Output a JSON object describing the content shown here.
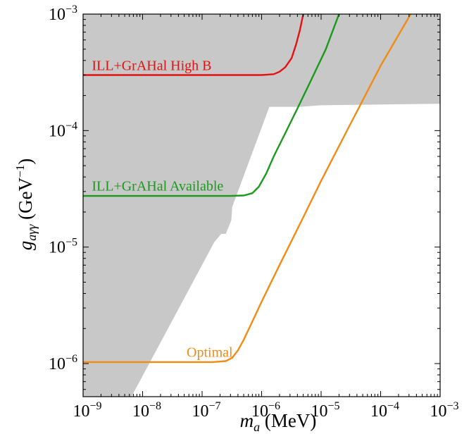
{
  "chart_data": {
    "type": "line",
    "x_scale": "log",
    "y_scale": "log",
    "xlim": [
      1e-09,
      0.001
    ],
    "ylim": [
      5.2e-07,
      0.001
    ],
    "xlabel": {
      "var": "m",
      "sub": "a",
      "unit": " (MeV)"
    },
    "ylabel": {
      "var": "g",
      "sub": "aγγ",
      "unit_pre": " (GeV",
      "unit_sup": "−1",
      "unit_post": ")"
    },
    "x_ticks": [
      {
        "value": 1e-09,
        "base": "10",
        "exp": "−9"
      },
      {
        "value": 1e-08,
        "base": "10",
        "exp": "−8"
      },
      {
        "value": 1e-07,
        "base": "10",
        "exp": "−7"
      },
      {
        "value": 1e-06,
        "base": "10",
        "exp": "−6"
      },
      {
        "value": 1e-05,
        "base": "10",
        "exp": "−5"
      },
      {
        "value": 0.0001,
        "base": "10",
        "exp": "−4"
      },
      {
        "value": 0.001,
        "base": "10",
        "exp": "−3"
      }
    ],
    "y_ticks": [
      {
        "value": 1e-06,
        "base": "10",
        "exp": "−6"
      },
      {
        "value": 1e-05,
        "base": "10",
        "exp": "−5"
      },
      {
        "value": 0.0001,
        "base": "10",
        "exp": "−4"
      },
      {
        "value": 0.001,
        "base": "10",
        "exp": "−3"
      }
    ],
    "excluded_region": {
      "color": "#c8c8c8",
      "boundary": [
        [
          1e-09,
          0.001
        ],
        [
          0.001,
          0.001
        ],
        [
          0.001,
          0.00017
        ],
        [
          1e-05,
          0.000165
        ],
        [
          4.5e-06,
          0.00016
        ],
        [
          2e-06,
          0.00016
        ],
        [
          1.35e-06,
          0.00016
        ],
        [
          3.5e-07,
          2.5e-05
        ],
        [
          3.2e-07,
          2.2e-05
        ],
        [
          3.1e-07,
          1.7e-05
        ],
        [
          2.5e-07,
          1.3e-05
        ],
        [
          2.1e-07,
          1.3e-05
        ],
        [
          1.6e-07,
          1.1e-05
        ],
        [
          6.5e-09,
          5.2e-07
        ],
        [
          1e-09,
          5.2e-07
        ]
      ]
    },
    "series": [
      {
        "name": "ILL+GrAHal High B",
        "color": "#e51010",
        "points": [
          [
            1e-09,
            0.0003
          ],
          [
            5e-07,
            0.0003
          ],
          [
            1e-06,
            0.0003
          ],
          [
            1.6e-06,
            0.000305
          ],
          [
            2e-06,
            0.00032
          ],
          [
            2.5e-06,
            0.00035
          ],
          [
            3.2e-06,
            0.00042
          ],
          [
            3.8e-06,
            0.00055
          ],
          [
            4.4e-06,
            0.00073
          ],
          [
            5e-06,
            0.001
          ]
        ]
      },
      {
        "name": "ILL+GrAHal Available",
        "color": "#1a9a1a",
        "points": [
          [
            1e-09,
            2.75e-05
          ],
          [
            3e-07,
            2.75e-05
          ],
          [
            5e-07,
            2.77e-05
          ],
          [
            7e-07,
            2.9e-05
          ],
          [
            9e-07,
            3.3e-05
          ],
          [
            1.2e-06,
            4.3e-05
          ],
          [
            1.6e-06,
            6e-05
          ],
          [
            2.5e-06,
            9.5e-05
          ],
          [
            4e-06,
            0.000155
          ],
          [
            7e-06,
            0.00028
          ],
          [
            1.2e-05,
            0.0005
          ],
          [
            2e-05,
            0.001
          ]
        ]
      },
      {
        "name": "Optimal",
        "color": "#f28a16",
        "points": [
          [
            1e-09,
            1.03e-06
          ],
          [
            1.5e-07,
            1.03e-06
          ],
          [
            2.5e-07,
            1.05e-06
          ],
          [
            3.2e-07,
            1.12e-06
          ],
          [
            4e-07,
            1.3e-06
          ],
          [
            5e-07,
            1.6e-06
          ],
          [
            7e-07,
            2.3e-06
          ],
          [
            1e-06,
            3.4e-06
          ],
          [
            2e-06,
            7e-06
          ],
          [
            5e-06,
            1.8e-05
          ],
          [
            1e-05,
            3.7e-05
          ],
          [
            3e-05,
            0.00011
          ],
          [
            0.0001,
            0.00036
          ],
          [
            0.00032,
            0.001
          ]
        ]
      }
    ],
    "annotations": [
      {
        "text": "ILL+GrAHal High B",
        "color": "#e51010",
        "x": 1.4e-09,
        "y": 0.00033
      },
      {
        "text": "ILL+GrAHal Available",
        "color": "#1a9a1a",
        "x": 1.4e-09,
        "y": 3.05e-05
      },
      {
        "text": "Optimal",
        "color": "#f28a16",
        "x": 5.5e-08,
        "y": 1.14e-06
      }
    ],
    "grid": false,
    "legend": "none"
  }
}
